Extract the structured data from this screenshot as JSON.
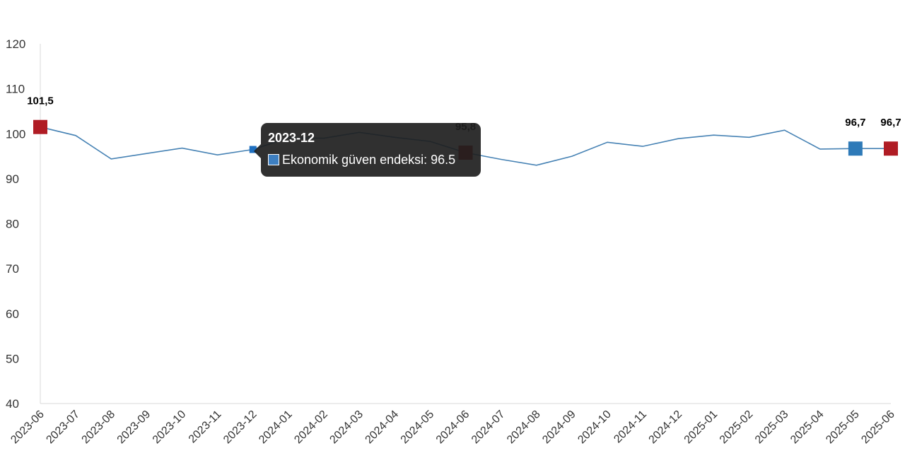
{
  "chart_data": {
    "type": "line",
    "categories": [
      "2023-06",
      "2023-07",
      "2023-08",
      "2023-09",
      "2023-10",
      "2023-11",
      "2023-12",
      "2024-01",
      "2024-02",
      "2024-03",
      "2024-04",
      "2024-05",
      "2024-06",
      "2024-07",
      "2024-08",
      "2024-09",
      "2024-10",
      "2024-11",
      "2024-12",
      "2025-01",
      "2025-02",
      "2025-03",
      "2025-04",
      "2025-05",
      "2025-06"
    ],
    "series": [
      {
        "name": "Ekonomik güven endeksi",
        "values": [
          101.5,
          99.6,
          94.4,
          95.6,
          96.8,
          95.3,
          96.5,
          99.1,
          99.0,
          100.3,
          99.2,
          98.3,
          95.8,
          94.3,
          93.0,
          95.0,
          98.1,
          97.2,
          98.9,
          99.7,
          99.2,
          100.8,
          96.6,
          96.7,
          96.7
        ],
        "color": "#4682b4"
      }
    ],
    "ylim": [
      40,
      120
    ],
    "yticks": [
      40,
      50,
      60,
      70,
      80,
      90,
      100,
      110,
      120
    ],
    "grid": false,
    "highlighted_points": [
      {
        "category": "2023-06",
        "label": "101,5",
        "color": "#b01c24"
      },
      {
        "category": "2024-06",
        "label": "95,8",
        "color": "#b01c24"
      },
      {
        "category": "2025-05",
        "label": "96,7",
        "color": "#2e7ab8"
      },
      {
        "category": "2025-06",
        "label": "96,7",
        "color": "#b01c24"
      }
    ],
    "tooltip": {
      "title": "2023-12",
      "series_name": "Ekonomik güven endeksi",
      "value_text": "96.5",
      "swatch_color": "#3d7fc1",
      "category": "2023-12"
    }
  }
}
